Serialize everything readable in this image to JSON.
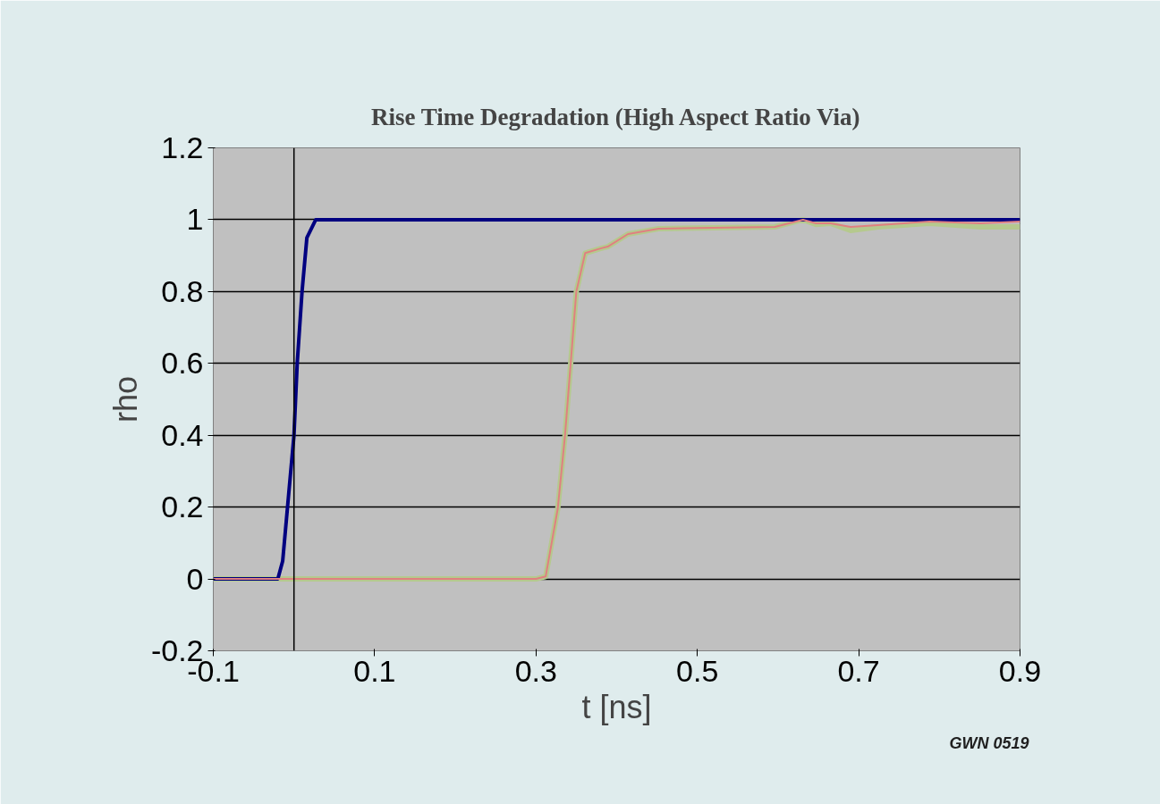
{
  "chart_data": {
    "type": "line",
    "title": "Rise Time Degradation (High Aspect Ratio Via)",
    "xlabel": "t [ns]",
    "ylabel": "rho",
    "annotations": [
      "GWN 0519"
    ],
    "series": [
      {
        "color": "#000080",
        "x": [
          -0.1,
          -0.02,
          -0.014,
          -0.008,
          0.0,
          0.004,
          0.01,
          0.016,
          0.027,
          0.1,
          0.3,
          0.5,
          0.7,
          0.9
        ],
        "values": [
          0,
          0,
          0.05,
          0.2,
          0.4,
          0.6,
          0.8,
          0.95,
          1.0,
          1.0,
          1.0,
          1.0,
          1.0,
          1.0
        ]
      },
      {
        "color": "#e08080",
        "x": [
          -0.1,
          0.3,
          0.312,
          0.327,
          0.336,
          0.343,
          0.35,
          0.361,
          0.38,
          0.389,
          0.414,
          0.452,
          0.596,
          0.631,
          0.647,
          0.665,
          0.69,
          0.724,
          0.788,
          0.851,
          0.9
        ],
        "values": [
          0,
          0,
          0.007,
          0.196,
          0.4,
          0.6,
          0.8,
          0.907,
          0.92,
          0.925,
          0.96,
          0.975,
          0.98,
          1.0,
          0.99,
          0.99,
          0.98,
          0.985,
          0.995,
          0.99,
          0.995
        ]
      },
      {
        "color": "#b5c98e",
        "x": [
          -0.1,
          0.3,
          0.312,
          0.327,
          0.336,
          0.343,
          0.35,
          0.361,
          0.38,
          0.389,
          0.414,
          0.452,
          0.596,
          0.631,
          0.647,
          0.665,
          0.69,
          0.724,
          0.788,
          0.851,
          0.9
        ],
        "values": [
          0,
          0,
          0.007,
          0.196,
          0.4,
          0.6,
          0.8,
          0.907,
          0.92,
          0.925,
          0.96,
          0.975,
          0.98,
          1.0,
          0.987,
          0.99,
          0.97,
          0.98,
          0.99,
          0.98,
          0.98
        ]
      }
    ],
    "xlim": [
      -0.1,
      0.9
    ],
    "xticks": [
      -0.1,
      0.1,
      0.3,
      0.5,
      0.7,
      0.9
    ],
    "ylim": [
      -0.2,
      1.2
    ],
    "yticks": [
      -0.2,
      0,
      0.2,
      0.4,
      0.6,
      0.8,
      1,
      1.2
    ],
    "ref_lines": [
      {
        "axis": "x",
        "value": 0,
        "color": "#000000"
      }
    ],
    "grid": "y",
    "marker": "none",
    "line_style": "solid"
  }
}
